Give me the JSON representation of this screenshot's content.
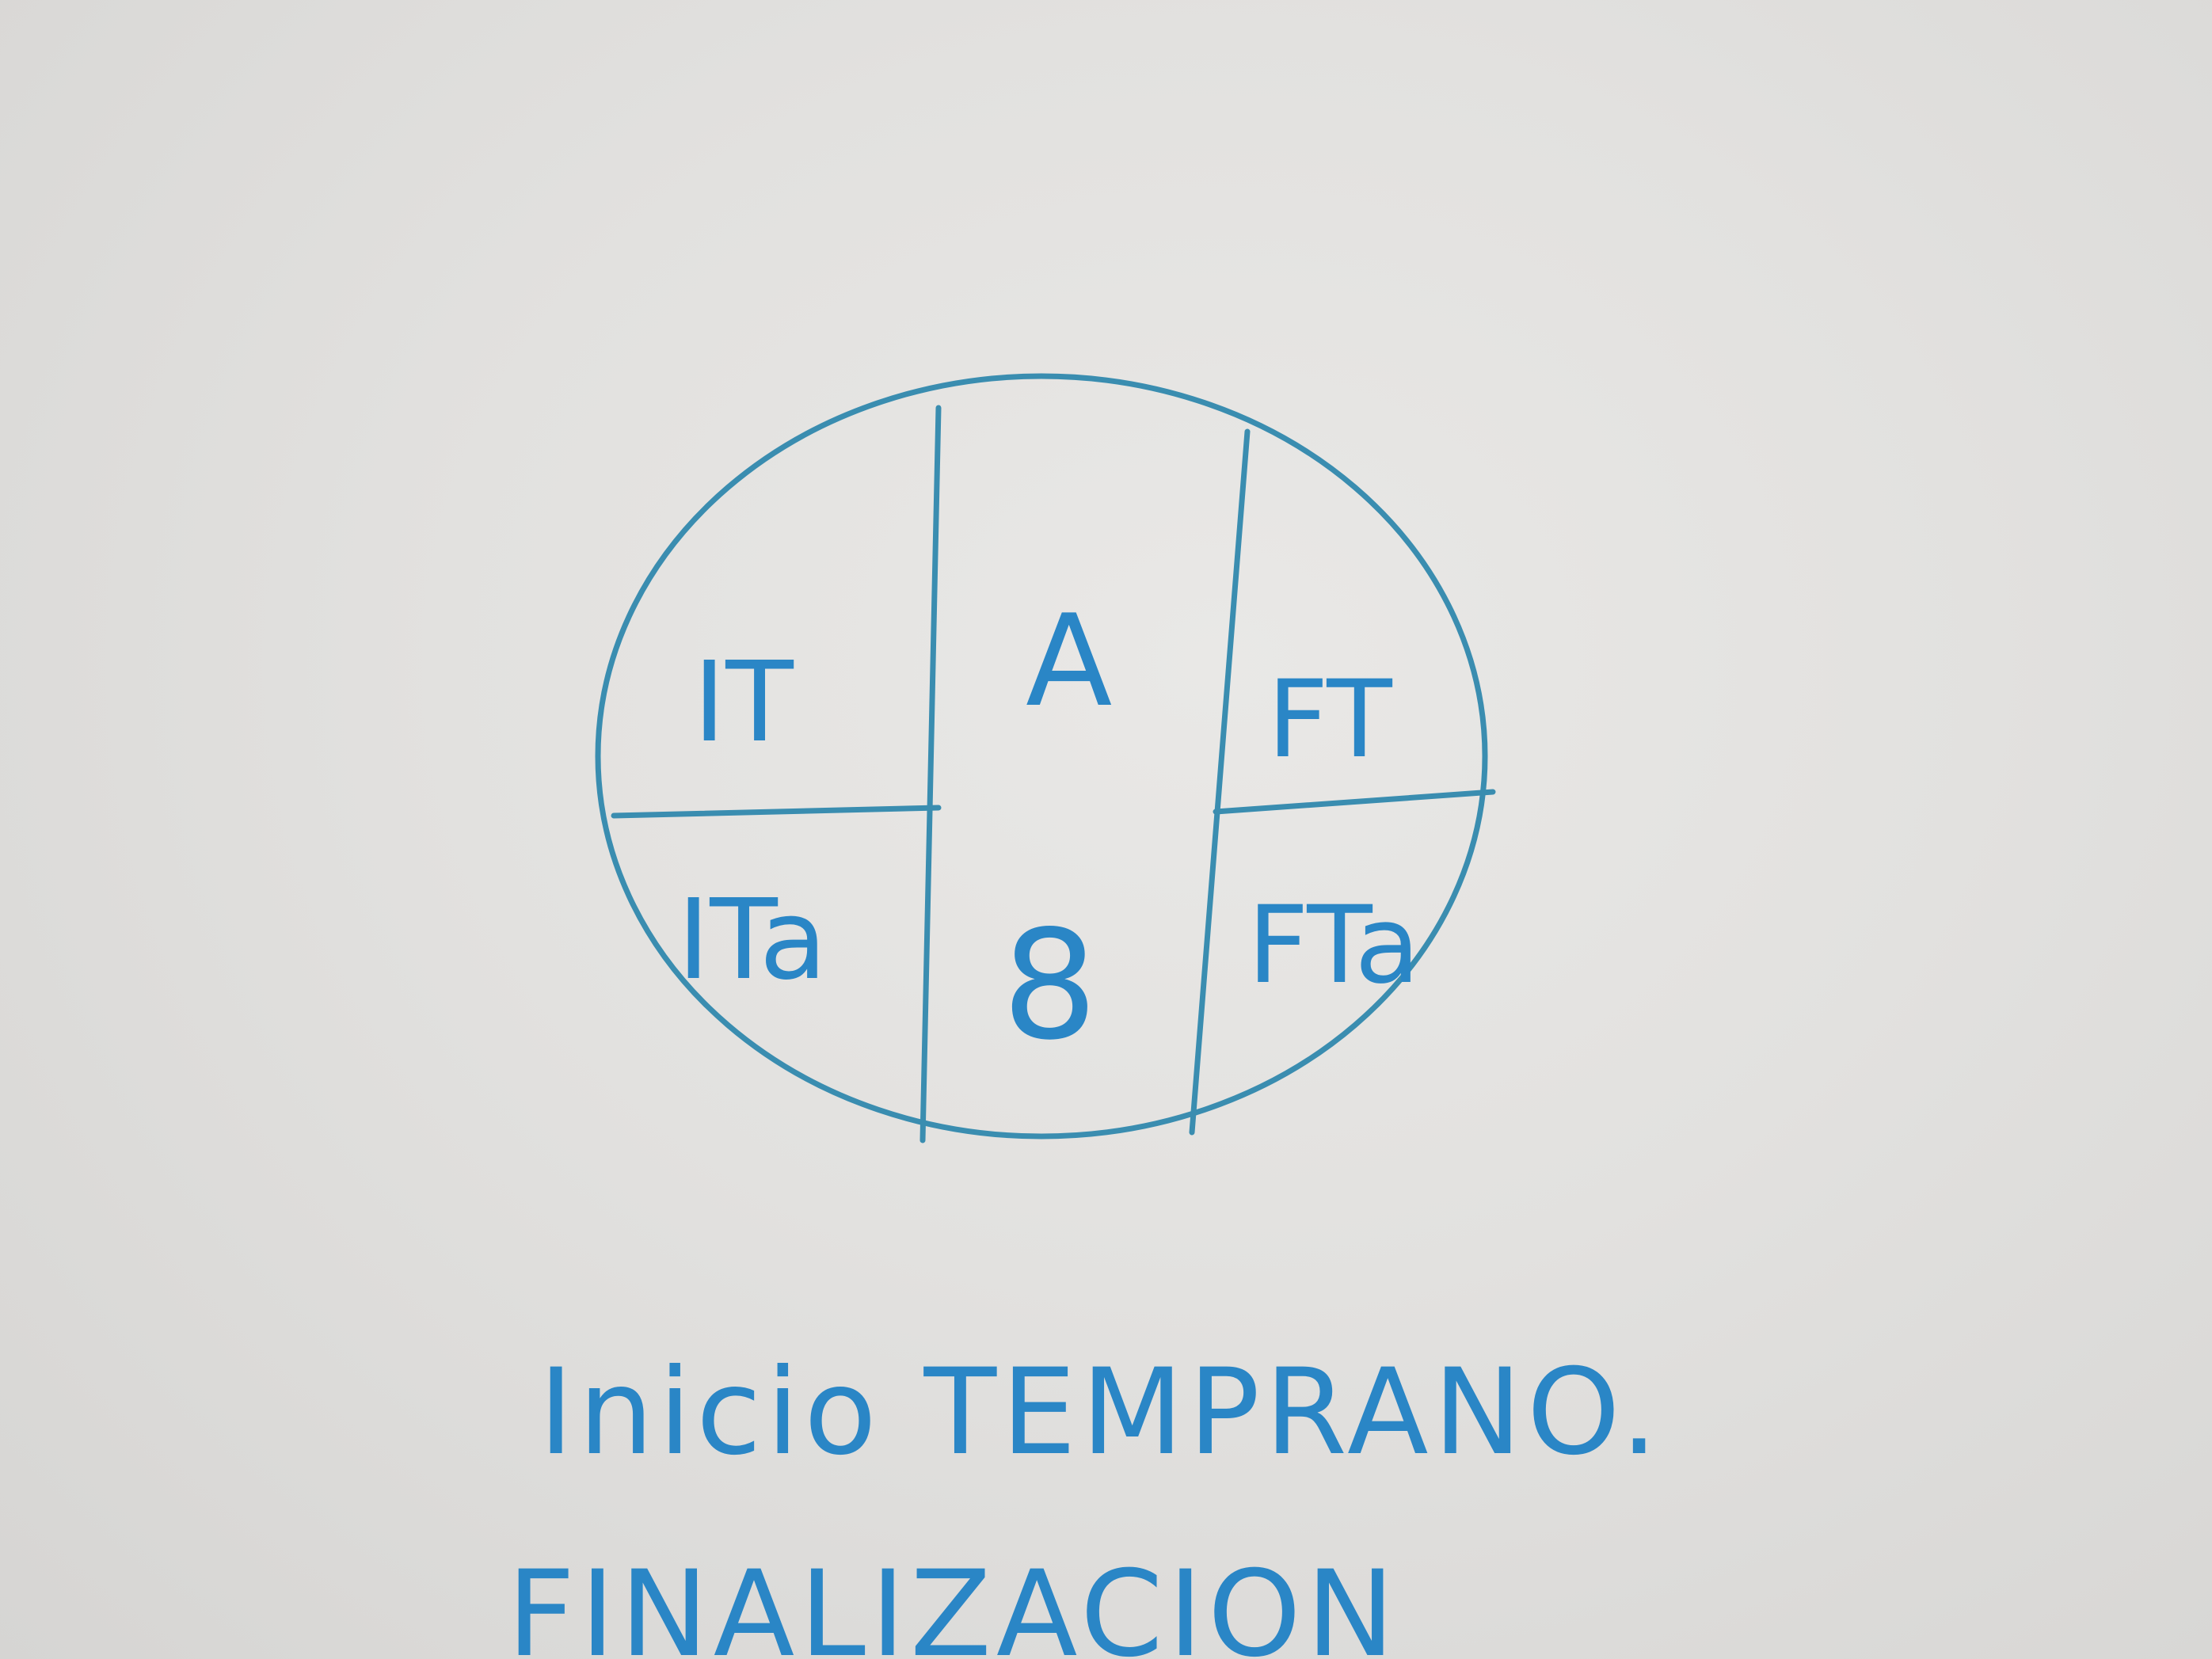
{
  "diagram": {
    "top_left_label": "IT",
    "bottom_left_label": "ITa",
    "top_middle_label": "A",
    "bottom_middle_label": "8",
    "top_right_label": "FT",
    "bottom_right_label": "FTa"
  },
  "notes": {
    "line_1": "Inicio TEMPRANO.",
    "line_2": "FINALIZACION"
  },
  "colors": {
    "ink": "#2a86c6",
    "diagram_stroke": "#3a8db0",
    "paper": "#e2e1df"
  }
}
